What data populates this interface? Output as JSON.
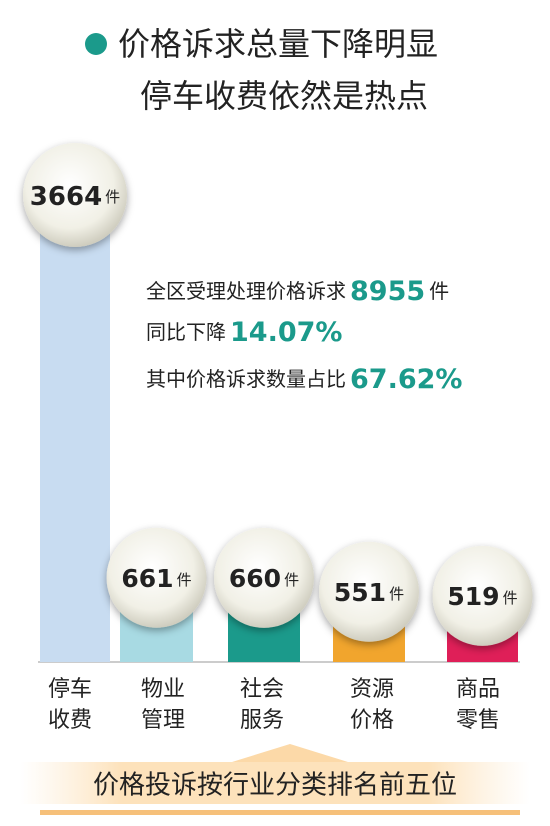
{
  "chart_data": {
    "type": "bar",
    "title": [
      "价格诉求总量下降明显",
      "停车收费依然是热点"
    ],
    "unit": "件",
    "categories": [
      [
        "停车",
        "收费"
      ],
      [
        "物业",
        "管理"
      ],
      [
        "社会",
        "服务"
      ],
      [
        "资源",
        "价格"
      ],
      [
        "商品",
        "零售"
      ]
    ],
    "values": [
      3664,
      661,
      660,
      551,
      519
    ],
    "colors": [
      "#c8dcf1",
      "#a8dae3",
      "#1b9a8b",
      "#f1a52d",
      "#df1f58"
    ],
    "stats": [
      {
        "text": "全区受理处理价格诉求",
        "value": 8955,
        "unit": "件"
      },
      {
        "text": "同比下降",
        "value": "14.07%"
      },
      {
        "text": "其中价格诉求数量占比",
        "value": "67.62%"
      }
    ],
    "caption": "价格投诉按行业分类排名前五位"
  }
}
